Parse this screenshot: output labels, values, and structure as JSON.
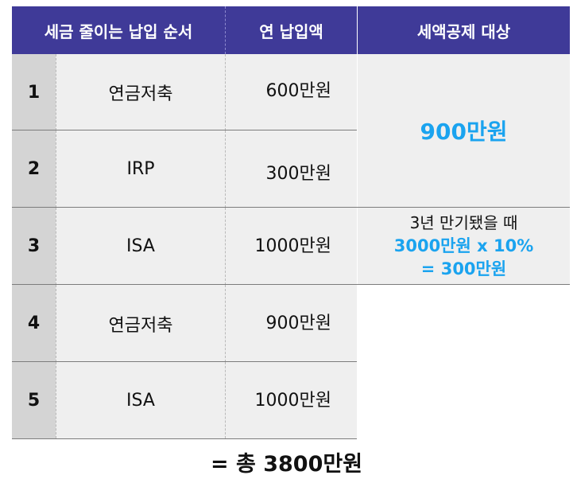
{
  "header": {
    "col1": "세금 줄이는 납입 순서",
    "col2": "연 납입액",
    "col3": "세액공제 대상"
  },
  "rows": [
    {
      "no": "1",
      "product": "연금저축",
      "amount": "600만원"
    },
    {
      "no": "2",
      "product": "IRP",
      "amount": "300만원"
    },
    {
      "no": "3",
      "product": "ISA",
      "amount": "1000만원"
    },
    {
      "no": "4",
      "product": "연금저축",
      "amount": "900만원"
    },
    {
      "no": "5",
      "product": "ISA",
      "amount": "1000만원"
    }
  ],
  "deduction": {
    "pension_total": "900만원",
    "isa_line1": "3년 만기됐을 때",
    "isa_line2": "3000만원 x 10%",
    "isa_line3": "= 300만원"
  },
  "total": "= 총 3800만원",
  "colors": {
    "header_bg": "#3f3a98",
    "accent": "#1aa3ef",
    "number_bg": "#d4d4d4",
    "cell_bg": "#efefef"
  }
}
